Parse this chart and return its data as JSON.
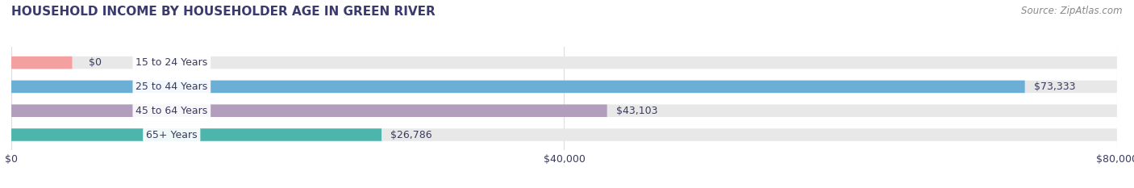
{
  "title": "HOUSEHOLD INCOME BY HOUSEHOLDER AGE IN GREEN RIVER",
  "source": "Source: ZipAtlas.com",
  "categories": [
    "15 to 24 Years",
    "25 to 44 Years",
    "45 to 64 Years",
    "65+ Years"
  ],
  "values": [
    0,
    73333,
    43103,
    26786
  ],
  "bar_colors": [
    "#f4a0a0",
    "#6baed6",
    "#b39dbd",
    "#4db6ac"
  ],
  "bar_bg_color": "#e8e8e8",
  "value_labels": [
    "$0",
    "$73,333",
    "$43,103",
    "$26,786"
  ],
  "xlim": [
    0,
    80000
  ],
  "xticks": [
    0,
    40000,
    80000
  ],
  "xtick_labels": [
    "$0",
    "$40,000",
    "$80,000"
  ],
  "title_color": "#3a3a6e",
  "source_color": "#888888",
  "label_color": "#3a3a5e",
  "title_fontsize": 11,
  "source_fontsize": 8.5,
  "tick_fontsize": 9,
  "bar_label_fontsize": 9,
  "bar_height": 0.52,
  "fig_bg_color": "#ffffff",
  "grid_color": "#dddddd"
}
